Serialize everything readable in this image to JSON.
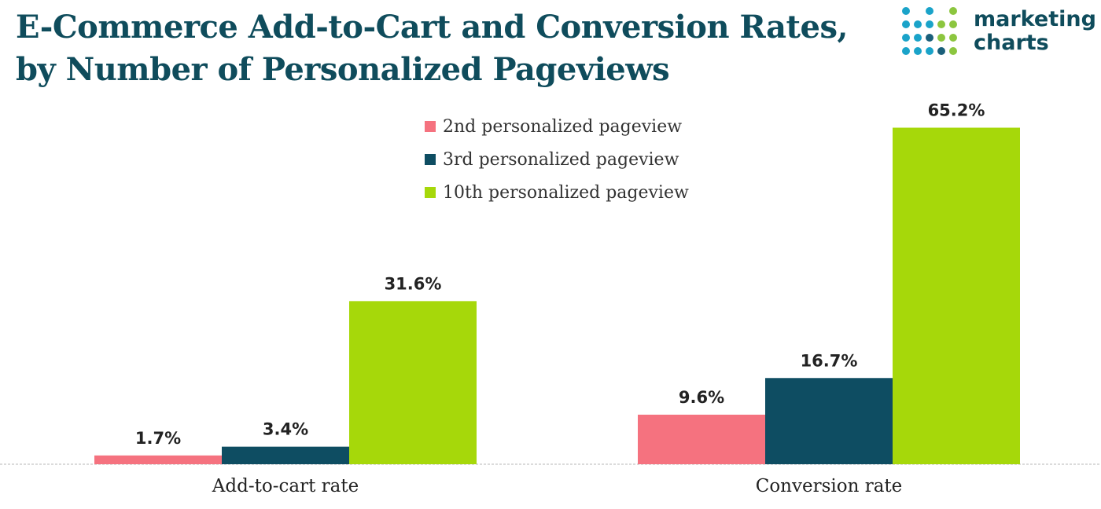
{
  "header": {
    "title_line1": "E-Commerce Add-to-Cart and Conversion Rates,",
    "title_line2": "by Number of Personalized Pageviews"
  },
  "logo": {
    "line1": "marketing",
    "line2": "charts",
    "colors": [
      "#1aa3c9",
      "#8cc63f",
      "#1a5f7a"
    ]
  },
  "chart_data": {
    "type": "bar",
    "title": "E-Commerce Add-to-Cart and Conversion Rates, by Number of Personalized Pageviews",
    "categories": [
      "Add-to-cart rate",
      "Conversion rate"
    ],
    "series": [
      {
        "name": "2nd personalized pageview",
        "color": "#f5727f",
        "values": [
          1.7,
          9.6
        ],
        "labels": [
          "1.7%",
          "9.6%"
        ]
      },
      {
        "name": "3rd personalized pageview",
        "color": "#0e4d62",
        "values": [
          3.4,
          16.7
        ],
        "labels": [
          "3.4%",
          "16.7%"
        ]
      },
      {
        "name": "10th personalized pageview",
        "color": "#a6d80a",
        "values": [
          31.6,
          65.2
        ],
        "labels": [
          "31.6%",
          "65.2%"
        ]
      }
    ],
    "value_unit": "%",
    "ylim": [
      0,
      70
    ],
    "grid": false,
    "legend_position": "top-center"
  }
}
